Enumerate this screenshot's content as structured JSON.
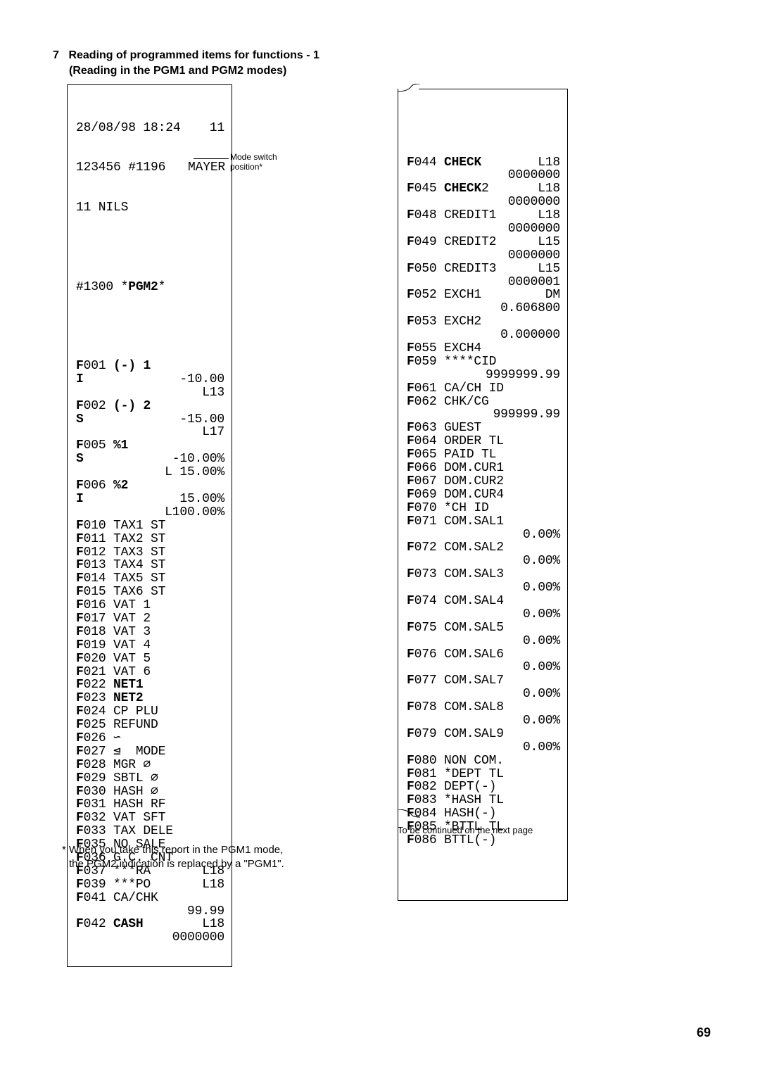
{
  "heading_num": "7",
  "heading_text": "Reading of programmed items for functions - 1",
  "subheading": "(Reading in the PGM1 and PGM2 modes)",
  "annotation": "Mode switch\nposition*",
  "footnote1_line1": "* When you take this report in the PGM1 mode,",
  "footnote1_line2": "the PGM2 indication is replaced by a \"PGM1\".",
  "footnote2": "To be continued on the next page",
  "page_num": "69",
  "left_receipt": {
    "date": "28/08/98 18:24",
    "seq": "11",
    "id_line": "123456 #1196   MAYER",
    "clerk": "11 NILS",
    "mode_line": "#1300 *PGM2*",
    "rows": [
      {
        "l": "F001 (-) 1",
        "lbold": "F",
        "ltail": "001 ",
        "lsym": "(-) 1",
        "r": ""
      },
      {
        "l": "I",
        "r": "-10.00"
      },
      {
        "l": "",
        "r": "L13"
      },
      {
        "l": "F002 (-) 2",
        "r": ""
      },
      {
        "l": "S",
        "r": "-15.00"
      },
      {
        "l": "",
        "r": "L17"
      },
      {
        "l": "F005 %1",
        "r": ""
      },
      {
        "l": "S",
        "r": "-10.00%"
      },
      {
        "l": "",
        "r": "L 15.00%"
      },
      {
        "l": "F006 %2",
        "r": ""
      },
      {
        "l": "I",
        "r": "15.00%"
      },
      {
        "l": "",
        "r": "L100.00%"
      },
      {
        "l": "F010 TAX1 ST",
        "r": ""
      },
      {
        "l": "F011 TAX2 ST",
        "r": ""
      },
      {
        "l": "F012 TAX3 ST",
        "r": ""
      },
      {
        "l": "F013 TAX4 ST",
        "r": ""
      },
      {
        "l": "F014 TAX5 ST",
        "r": ""
      },
      {
        "l": "F015 TAX6 ST",
        "r": ""
      },
      {
        "l": "F016 VAT 1",
        "r": ""
      },
      {
        "l": "F017 VAT 2",
        "r": ""
      },
      {
        "l": "F018 VAT 3",
        "r": ""
      },
      {
        "l": "F019 VAT 4",
        "r": ""
      },
      {
        "l": "F020 VAT 5",
        "r": ""
      },
      {
        "l": "F021 VAT 6",
        "r": ""
      },
      {
        "l": "F022 NET1",
        "r": ""
      },
      {
        "l": "F023 NET2",
        "r": ""
      },
      {
        "l": "F024 CP PLU",
        "r": ""
      },
      {
        "l": "F025 REFUND",
        "r": ""
      },
      {
        "l": "F026 ∽",
        "r": ""
      },
      {
        "l": "F027 ⊴  MODE",
        "r": ""
      },
      {
        "l": "F028 MGR ∅",
        "r": ""
      },
      {
        "l": "F029 SBTL ∅",
        "r": ""
      },
      {
        "l": "F030 HASH ∅",
        "r": ""
      },
      {
        "l": "F031 HASH RF",
        "r": ""
      },
      {
        "l": "F032 VAT SFT",
        "r": ""
      },
      {
        "l": "F033 TAX DELE",
        "r": ""
      },
      {
        "l": "F035 NO SALE",
        "r": ""
      },
      {
        "l": "F036 G.C. CNT",
        "r": ""
      },
      {
        "l": "F037 ***RA",
        "r": "L18"
      },
      {
        "l": "F039 ***PO",
        "r": "L18"
      },
      {
        "l": "F041 CA/CHK",
        "r": ""
      },
      {
        "l": "",
        "r": "99.99"
      },
      {
        "l": "F042 CASH",
        "r": "L18"
      },
      {
        "l": "",
        "r": "0000000"
      }
    ]
  },
  "right_receipt": {
    "rows": [
      {
        "l": "F044 CHECK",
        "r": "L18"
      },
      {
        "l": "",
        "r": "0000000"
      },
      {
        "l": "F045 CHECK2",
        "r": "L18"
      },
      {
        "l": "",
        "r": "0000000"
      },
      {
        "l": "F048 CREDIT1",
        "r": "L18"
      },
      {
        "l": "",
        "r": "0000000"
      },
      {
        "l": "F049 CREDIT2",
        "r": "L15"
      },
      {
        "l": "",
        "r": "0000000"
      },
      {
        "l": "F050 CREDIT3",
        "r": "L15"
      },
      {
        "l": "",
        "r": "0000001"
      },
      {
        "l": "F052 EXCH1",
        "r": "DM"
      },
      {
        "l": "",
        "r": "0.606800"
      },
      {
        "l": "F053 EXCH2",
        "r": ""
      },
      {
        "l": "",
        "r": "0.000000"
      },
      {
        "l": "F055 EXCH4",
        "r": ""
      },
      {
        "l": "F059 ****CID",
        "r": ""
      },
      {
        "l": "",
        "r": "9999999.99"
      },
      {
        "l": "F061 CA/CH ID",
        "r": ""
      },
      {
        "l": "F062 CHK/CG",
        "r": ""
      },
      {
        "l": "",
        "r": "999999.99"
      },
      {
        "l": "F063 GUEST",
        "r": ""
      },
      {
        "l": "F064 ORDER TL",
        "r": ""
      },
      {
        "l": "F065 PAID TL",
        "r": ""
      },
      {
        "l": "F066 DOM.CUR1",
        "r": ""
      },
      {
        "l": "F067 DOM.CUR2",
        "r": ""
      },
      {
        "l": "F069 DOM.CUR4",
        "r": ""
      },
      {
        "l": "F070 *CH ID",
        "r": ""
      },
      {
        "l": "F071 COM.SAL1",
        "r": ""
      },
      {
        "l": "",
        "r": "0.00%"
      },
      {
        "l": "F072 COM.SAL2",
        "r": ""
      },
      {
        "l": "",
        "r": "0.00%"
      },
      {
        "l": "F073 COM.SAL3",
        "r": ""
      },
      {
        "l": "",
        "r": "0.00%"
      },
      {
        "l": "F074 COM.SAL4",
        "r": ""
      },
      {
        "l": "",
        "r": "0.00%"
      },
      {
        "l": "F075 COM.SAL5",
        "r": ""
      },
      {
        "l": "",
        "r": "0.00%"
      },
      {
        "l": "F076 COM.SAL6",
        "r": ""
      },
      {
        "l": "",
        "r": "0.00%"
      },
      {
        "l": "F077 COM.SAL7",
        "r": ""
      },
      {
        "l": "",
        "r": "0.00%"
      },
      {
        "l": "F078 COM.SAL8",
        "r": ""
      },
      {
        "l": "",
        "r": "0.00%"
      },
      {
        "l": "F079 COM.SAL9",
        "r": ""
      },
      {
        "l": "",
        "r": "0.00%"
      },
      {
        "l": "F080 NON COM.",
        "r": ""
      },
      {
        "l": "F081 *DEPT TL",
        "r": ""
      },
      {
        "l": "F082 DEPT(-)",
        "r": ""
      },
      {
        "l": "F083 *HASH TL",
        "r": ""
      },
      {
        "l": "F084 HASH(-)",
        "r": ""
      },
      {
        "l": "F085 *BTTL TL",
        "r": ""
      },
      {
        "l": "F086 BTTL(-)",
        "r": ""
      }
    ]
  }
}
